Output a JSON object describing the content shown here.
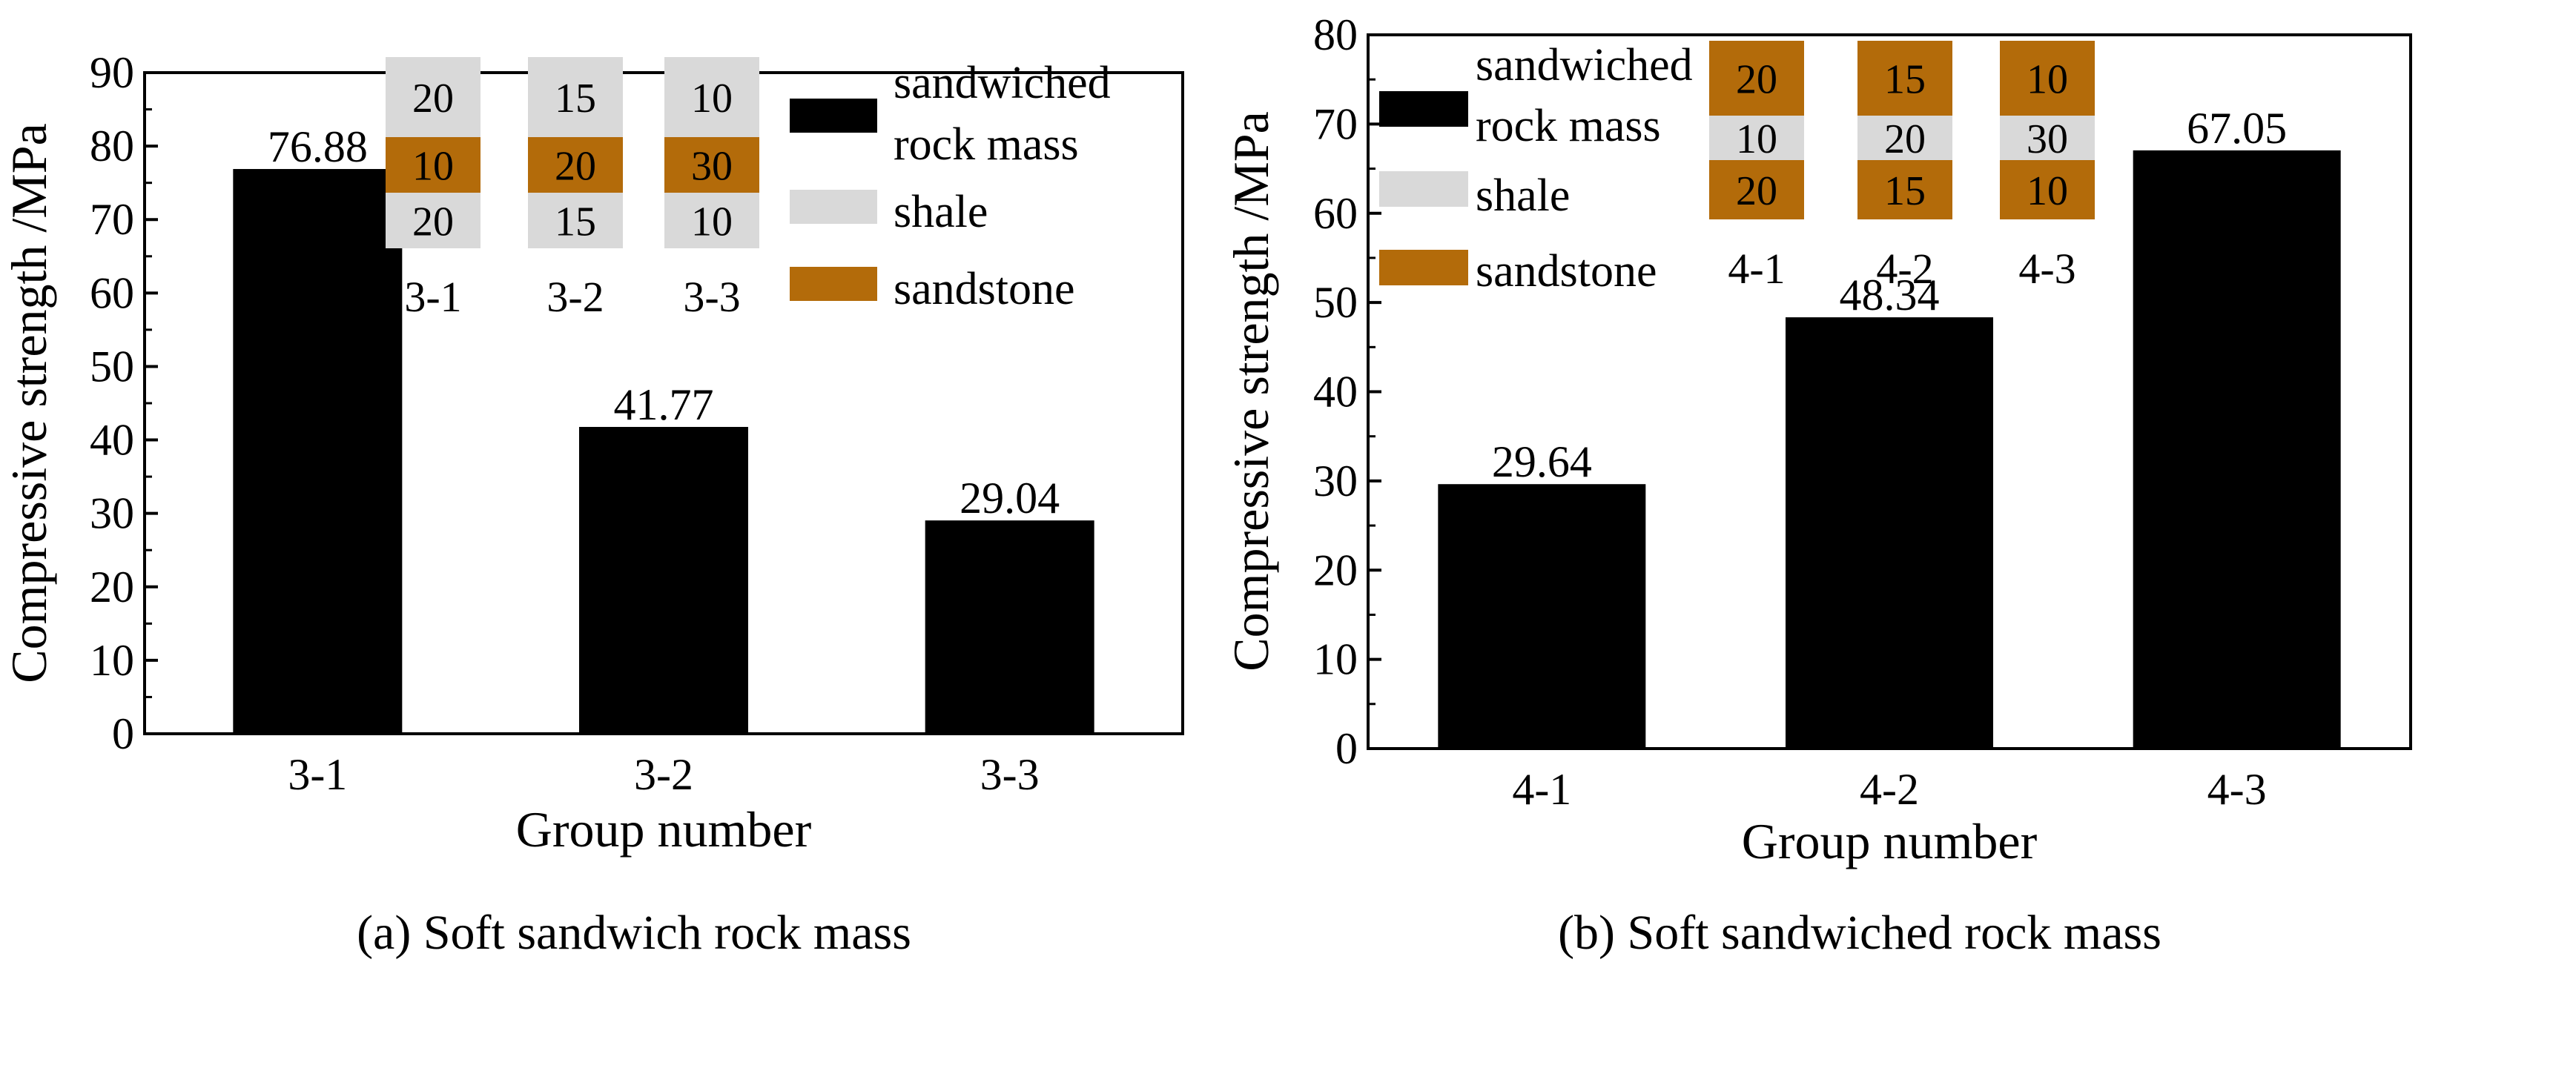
{
  "figure": {
    "caption_a": "(a) Soft sandwich rock mass",
    "caption_b": "(b) Soft sandwiched rock mass"
  },
  "colors": {
    "bar": "#000000",
    "shale": "#d9d9d9",
    "sandstone": "#b36b0a",
    "axis": "#000000"
  },
  "chart_data": [
    {
      "type": "bar",
      "title": "",
      "xlabel": "Group number",
      "ylabel": "Compressive strength /MPa",
      "categories": [
        "3-1",
        "3-2",
        "3-3"
      ],
      "values": [
        76.88,
        41.77,
        29.04
      ],
      "value_labels": [
        "76.88",
        "41.77",
        "29.04"
      ],
      "ylim": [
        0,
        90
      ],
      "yticks": [
        0,
        10,
        20,
        30,
        40,
        50,
        60,
        70,
        80,
        90
      ],
      "legend": {
        "placement": "top-right",
        "entries": [
          {
            "label_lines": [
              "sandwiched",
              "rock mass"
            ],
            "swatch": "bar"
          },
          {
            "label_lines": [
              "shale"
            ],
            "swatch": "shale"
          },
          {
            "label_lines": [
              "sandstone"
            ],
            "swatch": "sandstone"
          }
        ]
      },
      "inset_columns": {
        "placement": "top-center",
        "columns": [
          {
            "name": "3-1",
            "layers": [
              {
                "value": "20",
                "material": "shale"
              },
              {
                "value": "10",
                "material": "sandstone"
              },
              {
                "value": "20",
                "material": "shale"
              }
            ]
          },
          {
            "name": "3-2",
            "layers": [
              {
                "value": "15",
                "material": "shale"
              },
              {
                "value": "20",
                "material": "sandstone"
              },
              {
                "value": "15",
                "material": "shale"
              }
            ]
          },
          {
            "name": "3-3",
            "layers": [
              {
                "value": "10",
                "material": "shale"
              },
              {
                "value": "30",
                "material": "sandstone"
              },
              {
                "value": "10",
                "material": "shale"
              }
            ]
          }
        ]
      },
      "caption_key": "caption_a"
    },
    {
      "type": "bar",
      "title": "",
      "xlabel": "Group number",
      "ylabel": "Compressive strength /MPa",
      "categories": [
        "4-1",
        "4-2",
        "4-3"
      ],
      "values": [
        29.64,
        48.34,
        67.05
      ],
      "value_labels": [
        "29.64",
        "48.34",
        "67.05"
      ],
      "ylim": [
        0,
        80
      ],
      "yticks": [
        0,
        10,
        20,
        30,
        40,
        50,
        60,
        70,
        80
      ],
      "legend": {
        "placement": "top-left",
        "entries": [
          {
            "label_lines": [
              "sandwiched",
              "rock mass"
            ],
            "swatch": "bar"
          },
          {
            "label_lines": [
              "shale"
            ],
            "swatch": "shale"
          },
          {
            "label_lines": [
              "sandstone"
            ],
            "swatch": "sandstone"
          }
        ]
      },
      "inset_columns": {
        "placement": "top-center",
        "columns": [
          {
            "name": "4-1",
            "layers": [
              {
                "value": "20",
                "material": "sandstone"
              },
              {
                "value": "10",
                "material": "shale"
              },
              {
                "value": "20",
                "material": "sandstone"
              }
            ]
          },
          {
            "name": "4-2",
            "layers": [
              {
                "value": "15",
                "material": "sandstone"
              },
              {
                "value": "20",
                "material": "shale"
              },
              {
                "value": "15",
                "material": "sandstone"
              }
            ]
          },
          {
            "name": "4-3",
            "layers": [
              {
                "value": "10",
                "material": "sandstone"
              },
              {
                "value": "30",
                "material": "shale"
              },
              {
                "value": "10",
                "material": "sandstone"
              }
            ]
          }
        ]
      },
      "caption_key": "caption_b"
    }
  ]
}
